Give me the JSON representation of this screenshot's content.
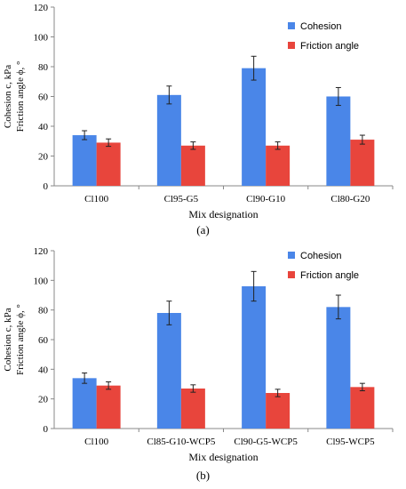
{
  "panels": [
    {
      "label": "(a)"
    },
    {
      "label": "(b)"
    }
  ],
  "chart_data": [
    {
      "type": "bar",
      "title": "",
      "xlabel": "Mix designation",
      "ylabel": [
        "Cohesion c, kPa",
        "Friction angle ϕ, °"
      ],
      "ylim": [
        0,
        120
      ],
      "yticks": [
        0,
        20,
        40,
        60,
        80,
        100,
        120
      ],
      "grid": false,
      "legend": "top-right",
      "categories": [
        "Cl100",
        "Cl95-G5",
        "Cl90-G10",
        "Cl80-G20"
      ],
      "series": [
        {
          "name": "Cohesion",
          "color": "#4a86e8",
          "values": [
            34,
            61,
            79,
            60
          ],
          "errors": [
            3,
            6,
            8,
            6
          ]
        },
        {
          "name": "Friction angle",
          "color": "#e8453c",
          "values": [
            29,
            27,
            27,
            31
          ],
          "errors": [
            2.5,
            2.5,
            2.5,
            3
          ]
        }
      ]
    },
    {
      "type": "bar",
      "title": "",
      "xlabel": "Mix designation",
      "ylabel": [
        "Cohesion c, kPa",
        "Friction angle ϕ, °"
      ],
      "ylim": [
        0,
        120
      ],
      "yticks": [
        0,
        20,
        40,
        60,
        80,
        100,
        120
      ],
      "grid": false,
      "legend": "top-right",
      "categories": [
        "Cl100",
        "Cl85-G10-WCP5",
        "Cl90-G5-WCP5",
        "Cl95-WCP5"
      ],
      "series": [
        {
          "name": "Cohesion",
          "color": "#4a86e8",
          "values": [
            34,
            78,
            96,
            82
          ],
          "errors": [
            3.5,
            8,
            10,
            8
          ]
        },
        {
          "name": "Friction angle",
          "color": "#e8453c",
          "values": [
            29,
            27,
            24,
            28
          ],
          "errors": [
            2.5,
            2.5,
            2.5,
            2.5
          ]
        }
      ]
    }
  ]
}
